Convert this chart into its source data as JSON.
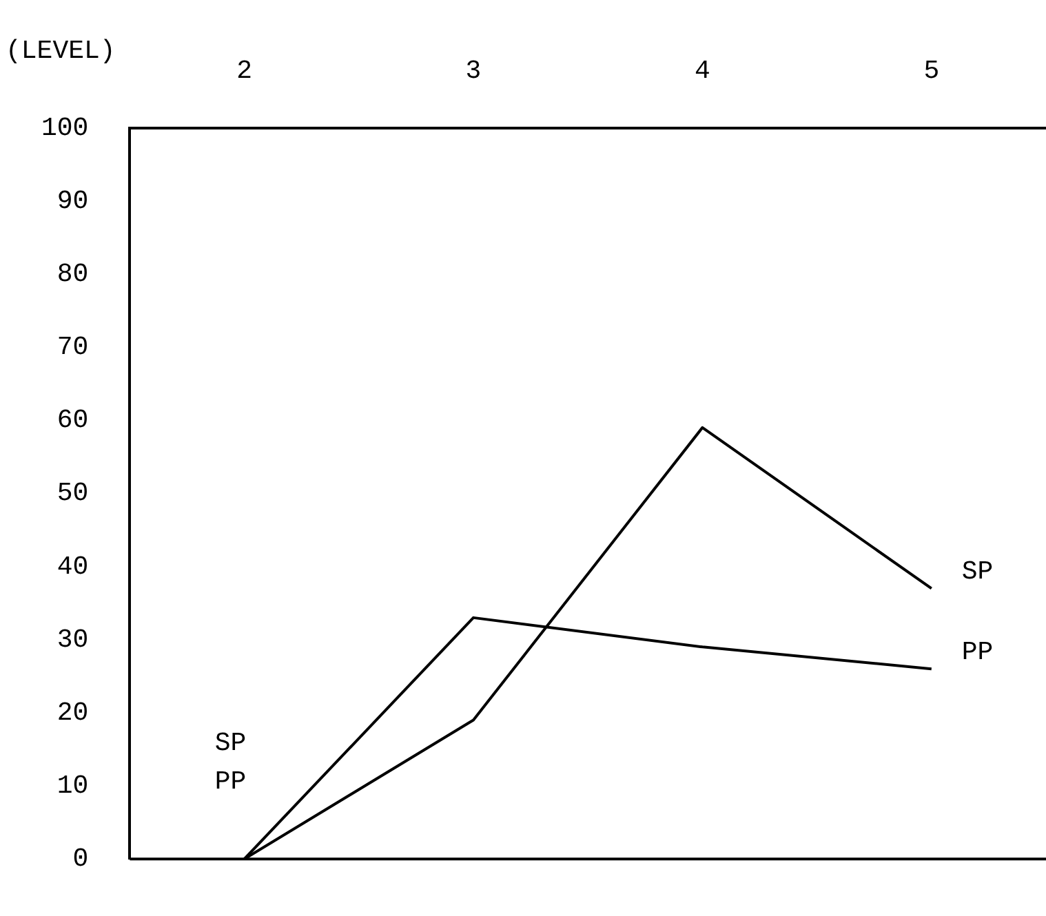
{
  "chart_data": {
    "type": "line",
    "xlabel": "(LEVEL)",
    "categories": [
      "2",
      "3",
      "4",
      "5"
    ],
    "series": [
      {
        "name": "SP",
        "color": "#000000",
        "values": [
          0,
          19,
          59,
          37
        ]
      },
      {
        "name": "PP",
        "color": "#000000",
        "values": [
          0,
          33,
          29,
          26
        ]
      }
    ],
    "ylim": [
      0,
      100
    ],
    "yticks": [
      0,
      10,
      20,
      30,
      40,
      50,
      60,
      70,
      80,
      90,
      100
    ],
    "grid": false,
    "legend": false,
    "marker": "none",
    "line_style": "solid"
  }
}
